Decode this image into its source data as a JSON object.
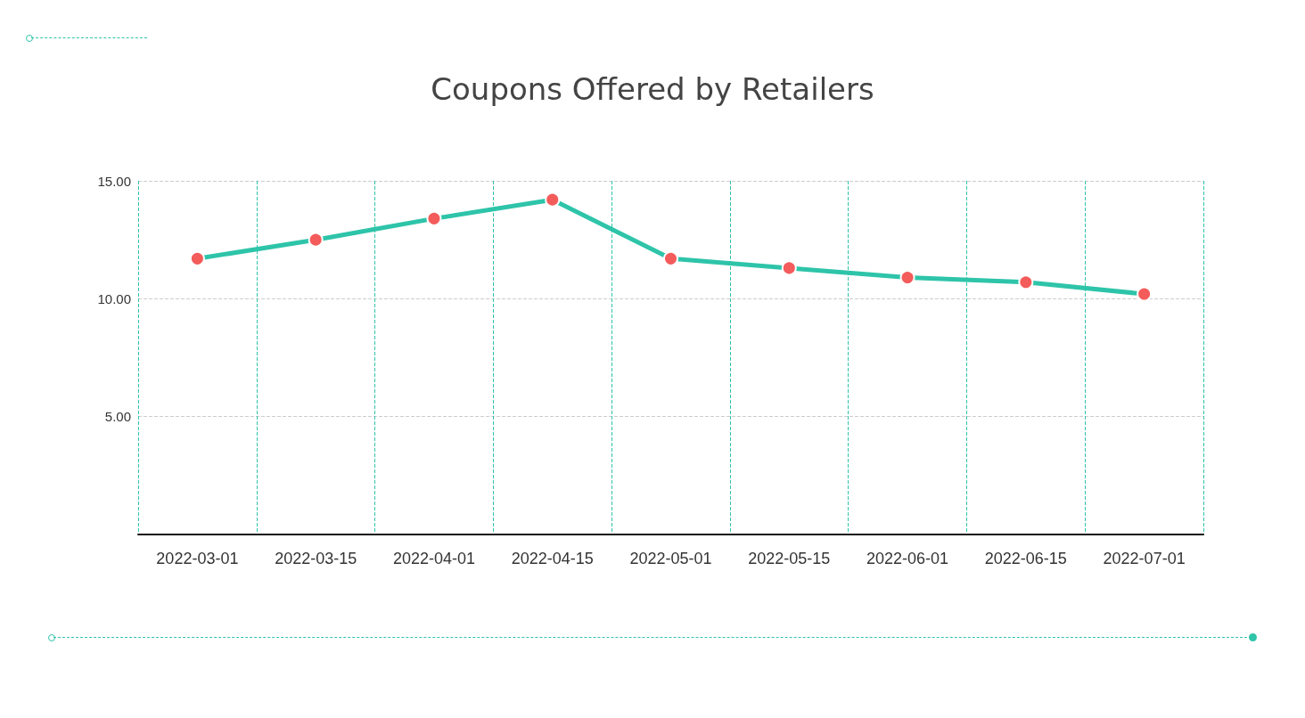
{
  "chart_data": {
    "type": "line",
    "title": "Coupons Offered by Retailers",
    "categories": [
      "2022-03-01",
      "2022-03-15",
      "2022-04-01",
      "2022-04-15",
      "2022-05-01",
      "2022-05-15",
      "2022-06-01",
      "2022-06-15",
      "2022-07-01"
    ],
    "series": [
      {
        "color": "#2ec4a9",
        "colors": [
          "#f45b5b",
          "#f45b5b",
          "#f45b5b",
          "#f45b5b",
          "#f45b5b",
          "#f45b5b",
          "#f45b5b",
          "#f45b5b",
          "#f45b5b"
        ],
        "values": [
          11.7,
          12.5,
          13.4,
          14.2,
          11.7,
          11.3,
          10.9,
          10.7,
          10.2
        ]
      }
    ],
    "ylim": [
      0,
      15
    ],
    "yticks": [
      {
        "value": 5,
        "label": "5.00"
      },
      {
        "value": 10,
        "label": "10.00"
      },
      {
        "value": 15,
        "label": "15.00"
      }
    ],
    "grid": true,
    "marker": "circle",
    "line_style": "solid"
  }
}
